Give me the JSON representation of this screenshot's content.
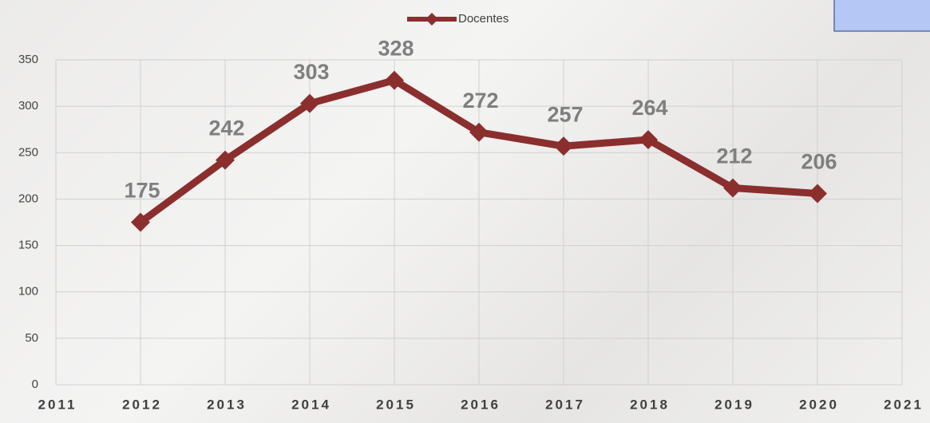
{
  "chart_data": {
    "type": "line",
    "x": [
      2012,
      2013,
      2014,
      2015,
      2016,
      2017,
      2018,
      2019,
      2020
    ],
    "series": [
      {
        "name": "Docentes",
        "color": "#8b2e2e",
        "values": [
          175,
          242,
          303,
          328,
          272,
          257,
          264,
          212,
          206
        ]
      }
    ],
    "xlim": [
      2011,
      2021
    ],
    "xticks": [
      2011,
      2012,
      2013,
      2014,
      2015,
      2016,
      2017,
      2018,
      2019,
      2020,
      2021
    ],
    "ylim": [
      0,
      350
    ],
    "yticks": [
      0,
      50,
      100,
      150,
      200,
      250,
      300,
      350
    ],
    "grid": true,
    "legend": "top"
  }
}
